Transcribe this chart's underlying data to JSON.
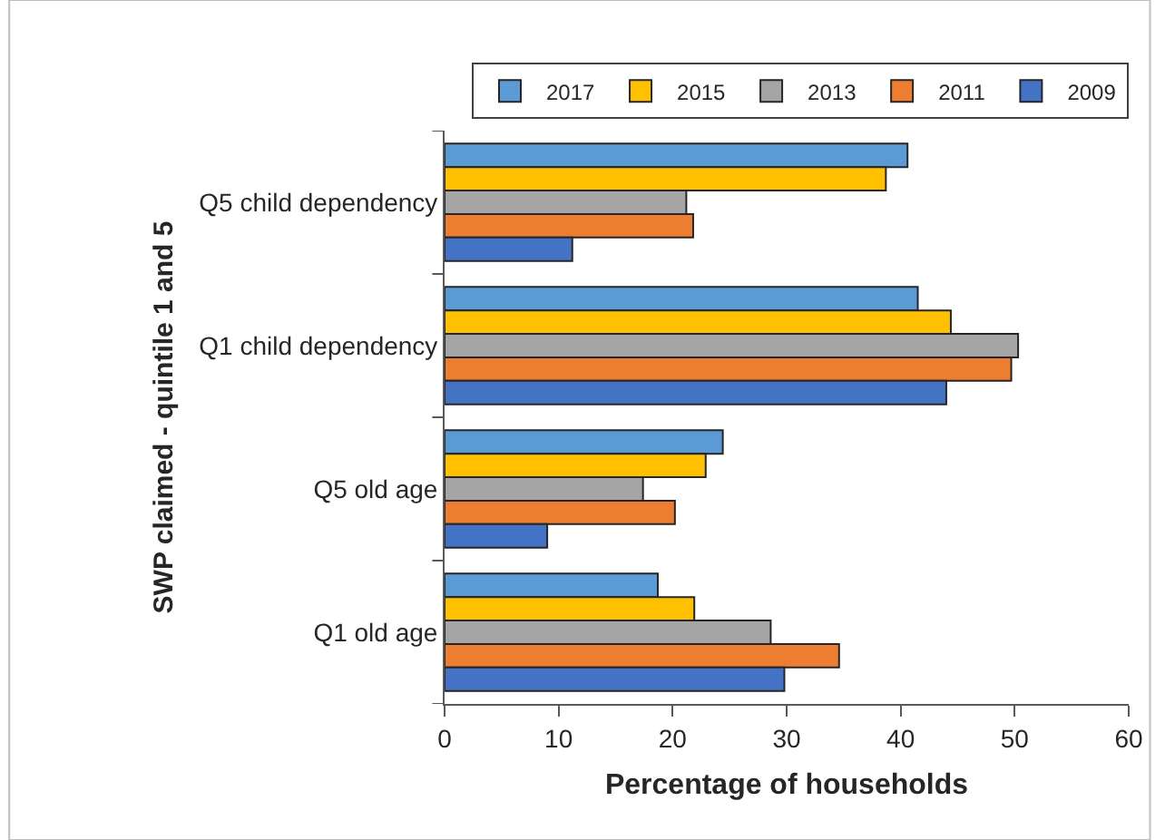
{
  "chart_data": {
    "type": "bar",
    "orientation": "horizontal",
    "xlabel": "Percentage of households",
    "ylabel": "SWP claimed - quintile 1 and 5",
    "categories": [
      "Q5 child dependency",
      "Q1 child dependency",
      "Q5 old age",
      "Q1 old age"
    ],
    "series": [
      {
        "name": "2017",
        "color": "#5b9bd5",
        "values": [
          40.6,
          41.5,
          24.4,
          18.7
        ]
      },
      {
        "name": "2015",
        "color": "#ffc000",
        "values": [
          38.7,
          44.4,
          22.9,
          21.9
        ]
      },
      {
        "name": "2013",
        "color": "#a5a5a5",
        "values": [
          21.2,
          50.3,
          17.4,
          28.6
        ]
      },
      {
        "name": "2011",
        "color": "#ed7d31",
        "values": [
          21.8,
          49.7,
          20.2,
          34.6
        ]
      },
      {
        "name": "2009",
        "color": "#4472c4",
        "values": [
          11.2,
          44.0,
          9.0,
          29.8
        ]
      }
    ],
    "xlim": [
      0,
      60
    ],
    "xticks": [
      0,
      10,
      20,
      30,
      40,
      50,
      60
    ],
    "grid": false,
    "legend": "top right"
  }
}
